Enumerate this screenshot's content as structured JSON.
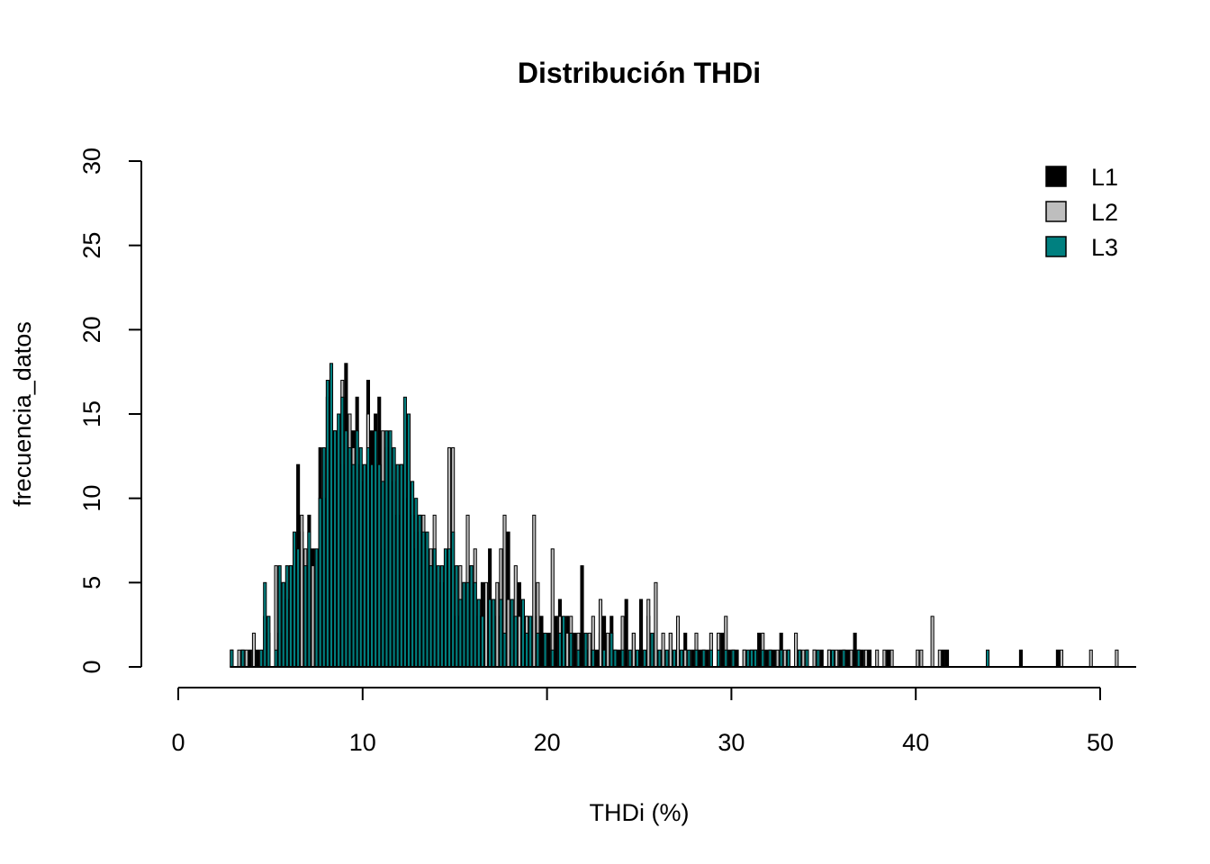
{
  "chart_data": {
    "type": "bar",
    "title": "Distribución THDi",
    "xlabel": "THDi (%)",
    "ylabel": "frecuencia_datos",
    "xlim": [
      0,
      52
    ],
    "ylim": [
      0,
      30
    ],
    "x_ticks": [
      "0",
      "10",
      "20",
      "30",
      "40",
      "50"
    ],
    "y_ticks": [
      "0",
      "5",
      "10",
      "15",
      "20",
      "25",
      "30"
    ],
    "bin_width": 0.2,
    "bar_border": "#000000",
    "legend_position": "top-right",
    "series": [
      {
        "name": "L1",
        "color": "#000000",
        "bins": [
          [
            3.4,
            1
          ],
          [
            3.8,
            1
          ],
          [
            4.2,
            1
          ],
          [
            4.8,
            2
          ],
          [
            5.4,
            2
          ],
          [
            5.8,
            4
          ],
          [
            6.2,
            6
          ],
          [
            6.4,
            12
          ],
          [
            6.6,
            8
          ],
          [
            7.0,
            9
          ],
          [
            7.2,
            7
          ],
          [
            7.6,
            13
          ],
          [
            7.8,
            10
          ],
          [
            8.2,
            14
          ],
          [
            8.6,
            14
          ],
          [
            8.8,
            12
          ],
          [
            9.0,
            18
          ],
          [
            9.2,
            13
          ],
          [
            9.4,
            14
          ],
          [
            9.6,
            16
          ],
          [
            9.8,
            11
          ],
          [
            10.2,
            17
          ],
          [
            10.4,
            14
          ],
          [
            10.6,
            15
          ],
          [
            10.8,
            16
          ],
          [
            11.0,
            7
          ],
          [
            11.4,
            13
          ],
          [
            11.8,
            9
          ],
          [
            12.2,
            10
          ],
          [
            12.6,
            8
          ],
          [
            12.8,
            7
          ],
          [
            13.0,
            9
          ],
          [
            13.4,
            6
          ],
          [
            13.8,
            7
          ],
          [
            14.2,
            4
          ],
          [
            14.6,
            5
          ],
          [
            15.0,
            3
          ],
          [
            15.4,
            5
          ],
          [
            15.8,
            6
          ],
          [
            16.4,
            5
          ],
          [
            16.8,
            7
          ],
          [
            17.2,
            3
          ],
          [
            17.6,
            3
          ],
          [
            17.8,
            8
          ],
          [
            18.0,
            1
          ],
          [
            18.4,
            5
          ],
          [
            18.8,
            3
          ],
          [
            19.2,
            3
          ],
          [
            19.6,
            3
          ],
          [
            20.0,
            2
          ],
          [
            20.4,
            3
          ],
          [
            20.6,
            4
          ],
          [
            21.0,
            3
          ],
          [
            21.4,
            2
          ],
          [
            21.8,
            6
          ],
          [
            22.2,
            1
          ],
          [
            22.6,
            1
          ],
          [
            22.8,
            2
          ],
          [
            23.0,
            3
          ],
          [
            23.4,
            3
          ],
          [
            23.8,
            1
          ],
          [
            24.2,
            4
          ],
          [
            24.6,
            2
          ],
          [
            25.0,
            4
          ],
          [
            25.4,
            3
          ],
          [
            25.8,
            1
          ],
          [
            26.2,
            1
          ],
          [
            26.6,
            2
          ],
          [
            27.0,
            1
          ],
          [
            27.4,
            2
          ],
          [
            27.8,
            1
          ],
          [
            28.2,
            1
          ],
          [
            28.6,
            1
          ],
          [
            29.4,
            2
          ],
          [
            29.8,
            1
          ],
          [
            30.2,
            1
          ],
          [
            30.6,
            1
          ],
          [
            31.0,
            1
          ],
          [
            31.4,
            2
          ],
          [
            31.8,
            1
          ],
          [
            32.2,
            1
          ],
          [
            32.6,
            2
          ],
          [
            33.0,
            1
          ],
          [
            33.6,
            1
          ],
          [
            34.0,
            1
          ],
          [
            34.4,
            1
          ],
          [
            34.8,
            1
          ],
          [
            35.2,
            1
          ],
          [
            35.8,
            1
          ],
          [
            36.2,
            1
          ],
          [
            36.6,
            2
          ],
          [
            37.0,
            1
          ],
          [
            37.4,
            1
          ],
          [
            38.4,
            1
          ],
          [
            41.4,
            1
          ],
          [
            41.6,
            1
          ],
          [
            45.6,
            1
          ],
          [
            47.6,
            1
          ]
        ]
      },
      {
        "name": "L2",
        "color": "#bebebe",
        "bins": [
          [
            2.8,
            1
          ],
          [
            3.2,
            1
          ],
          [
            3.6,
            1
          ],
          [
            4.0,
            2
          ],
          [
            4.6,
            3
          ],
          [
            5.2,
            6
          ],
          [
            5.6,
            5
          ],
          [
            6.0,
            6
          ],
          [
            6.6,
            9
          ],
          [
            6.8,
            7
          ],
          [
            7.2,
            6
          ],
          [
            7.6,
            10
          ],
          [
            8.0,
            16
          ],
          [
            8.4,
            14
          ],
          [
            8.8,
            17
          ],
          [
            9.2,
            15
          ],
          [
            9.4,
            13
          ],
          [
            9.8,
            12
          ],
          [
            10.2,
            15
          ],
          [
            10.6,
            12
          ],
          [
            11.0,
            14
          ],
          [
            11.2,
            13
          ],
          [
            11.6,
            11
          ],
          [
            12.0,
            12
          ],
          [
            12.4,
            10
          ],
          [
            12.6,
            9
          ],
          [
            13.0,
            8
          ],
          [
            13.2,
            9
          ],
          [
            13.6,
            7
          ],
          [
            13.8,
            9
          ],
          [
            14.2,
            5
          ],
          [
            14.6,
            13
          ],
          [
            14.8,
            13
          ],
          [
            15.2,
            6
          ],
          [
            15.6,
            9
          ],
          [
            16.0,
            7
          ],
          [
            16.2,
            3
          ],
          [
            16.6,
            5
          ],
          [
            17.2,
            5
          ],
          [
            17.4,
            7
          ],
          [
            17.6,
            9
          ],
          [
            17.8,
            4
          ],
          [
            18.2,
            6
          ],
          [
            18.4,
            3
          ],
          [
            18.8,
            3
          ],
          [
            19.2,
            9
          ],
          [
            19.4,
            5
          ],
          [
            19.8,
            2
          ],
          [
            20.2,
            7
          ],
          [
            20.6,
            3
          ],
          [
            21.0,
            2
          ],
          [
            21.2,
            3
          ],
          [
            21.6,
            2
          ],
          [
            22.2,
            2
          ],
          [
            22.4,
            3
          ],
          [
            22.8,
            4
          ],
          [
            23.2,
            2
          ],
          [
            23.6,
            1
          ],
          [
            24.0,
            3
          ],
          [
            24.6,
            2
          ],
          [
            25.4,
            4
          ],
          [
            25.8,
            5
          ],
          [
            26.2,
            2
          ],
          [
            26.6,
            2
          ],
          [
            27.0,
            3
          ],
          [
            27.4,
            1
          ],
          [
            28.0,
            2
          ],
          [
            28.4,
            1
          ],
          [
            28.8,
            2
          ],
          [
            29.2,
            2
          ],
          [
            29.6,
            3
          ],
          [
            30.0,
            1
          ],
          [
            30.6,
            1
          ],
          [
            31.2,
            1
          ],
          [
            31.6,
            2
          ],
          [
            32.0,
            1
          ],
          [
            32.4,
            1
          ],
          [
            32.8,
            1
          ],
          [
            33.4,
            2
          ],
          [
            33.8,
            1
          ],
          [
            34.4,
            1
          ],
          [
            35.2,
            1
          ],
          [
            35.6,
            1
          ],
          [
            36.0,
            1
          ],
          [
            36.4,
            1
          ],
          [
            36.8,
            1
          ],
          [
            37.2,
            1
          ],
          [
            37.8,
            1
          ],
          [
            38.2,
            1
          ],
          [
            38.6,
            1
          ],
          [
            40.0,
            1
          ],
          [
            40.2,
            1
          ],
          [
            40.8,
            3
          ],
          [
            41.2,
            1
          ],
          [
            47.8,
            1
          ],
          [
            49.4,
            1
          ],
          [
            50.8,
            1
          ]
        ]
      },
      {
        "name": "L3",
        "color": "#008080",
        "bins": [
          [
            2.8,
            1
          ],
          [
            3.0,
            0
          ],
          [
            3.4,
            1
          ],
          [
            4.4,
            1
          ],
          [
            4.6,
            5
          ],
          [
            4.8,
            3
          ],
          [
            5.2,
            1
          ],
          [
            5.4,
            6
          ],
          [
            5.6,
            5
          ],
          [
            5.8,
            6
          ],
          [
            6.0,
            6
          ],
          [
            6.2,
            8
          ],
          [
            6.4,
            7
          ],
          [
            6.8,
            6
          ],
          [
            7.0,
            8
          ],
          [
            7.4,
            7
          ],
          [
            7.6,
            10
          ],
          [
            7.8,
            13
          ],
          [
            8.0,
            17
          ],
          [
            8.2,
            18
          ],
          [
            8.4,
            14
          ],
          [
            8.6,
            15
          ],
          [
            8.8,
            16
          ],
          [
            9.0,
            14
          ],
          [
            9.2,
            13
          ],
          [
            9.4,
            12
          ],
          [
            9.6,
            14
          ],
          [
            9.8,
            13
          ],
          [
            10.0,
            12
          ],
          [
            10.2,
            13
          ],
          [
            10.4,
            12
          ],
          [
            10.6,
            14
          ],
          [
            10.8,
            12
          ],
          [
            11.0,
            11
          ],
          [
            11.2,
            14
          ],
          [
            11.4,
            14
          ],
          [
            11.6,
            13
          ],
          [
            11.8,
            12
          ],
          [
            12.0,
            12
          ],
          [
            12.2,
            16
          ],
          [
            12.4,
            15
          ],
          [
            12.6,
            11
          ],
          [
            12.8,
            10
          ],
          [
            13.0,
            9
          ],
          [
            13.2,
            8
          ],
          [
            13.4,
            8
          ],
          [
            13.6,
            6
          ],
          [
            13.8,
            7
          ],
          [
            14.0,
            6
          ],
          [
            14.2,
            6
          ],
          [
            14.4,
            7
          ],
          [
            14.6,
            7
          ],
          [
            14.8,
            8
          ],
          [
            15.0,
            6
          ],
          [
            15.2,
            4
          ],
          [
            15.4,
            5
          ],
          [
            15.6,
            5
          ],
          [
            15.8,
            6
          ],
          [
            16.0,
            5
          ],
          [
            16.2,
            4
          ],
          [
            16.4,
            3
          ],
          [
            16.8,
            4
          ],
          [
            17.0,
            4
          ],
          [
            17.4,
            4
          ],
          [
            17.6,
            2
          ],
          [
            18.0,
            4
          ],
          [
            18.2,
            3
          ],
          [
            18.6,
            4
          ],
          [
            18.8,
            2
          ],
          [
            19.0,
            3
          ],
          [
            19.4,
            2
          ],
          [
            19.8,
            2
          ],
          [
            20.2,
            1
          ],
          [
            20.6,
            2
          ],
          [
            20.8,
            3
          ],
          [
            21.2,
            2
          ],
          [
            21.6,
            1
          ],
          [
            22.0,
            2
          ],
          [
            22.4,
            1
          ],
          [
            23.0,
            1
          ],
          [
            23.4,
            2
          ],
          [
            23.6,
            1
          ],
          [
            24.0,
            1
          ],
          [
            24.4,
            1
          ],
          [
            24.8,
            1
          ],
          [
            25.2,
            1
          ],
          [
            25.6,
            2
          ],
          [
            26.0,
            1
          ],
          [
            26.4,
            1
          ],
          [
            26.8,
            1
          ],
          [
            27.2,
            1
          ],
          [
            27.6,
            1
          ],
          [
            28.0,
            1
          ],
          [
            28.4,
            1
          ],
          [
            28.8,
            1
          ],
          [
            29.2,
            1
          ],
          [
            29.6,
            1
          ],
          [
            30.0,
            1
          ],
          [
            30.8,
            1
          ],
          [
            31.0,
            1
          ],
          [
            31.2,
            1
          ],
          [
            31.6,
            1
          ],
          [
            32.0,
            1
          ],
          [
            32.6,
            1
          ],
          [
            33.0,
            1
          ],
          [
            33.6,
            1
          ],
          [
            34.0,
            1
          ],
          [
            34.6,
            1
          ],
          [
            35.4,
            1
          ],
          [
            36.0,
            1
          ],
          [
            36.8,
            1
          ],
          [
            43.8,
            1
          ]
        ]
      }
    ]
  }
}
